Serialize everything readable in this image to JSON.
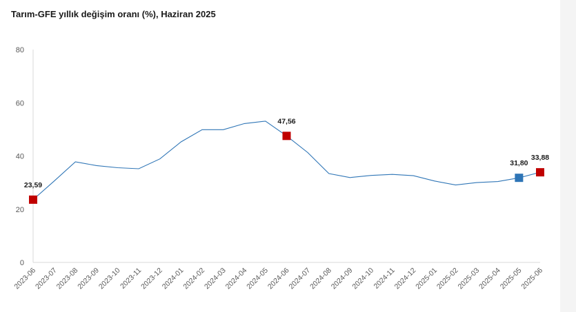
{
  "chart_data": {
    "type": "line",
    "title": "Tarım-GFE yıllık değişim oranı (%), Haziran 2025",
    "xlabel": "",
    "ylabel": "",
    "ylim": [
      0,
      80
    ],
    "yticks": [
      "0",
      "20",
      "40",
      "60",
      "80"
    ],
    "grid": false,
    "x": [
      "2023-06",
      "2023-07",
      "2023-08",
      "2023-09",
      "2023-10",
      "2023-11",
      "2023-12",
      "2024-01",
      "2024-02",
      "2024-03",
      "2024-04",
      "2024-05",
      "2024-06",
      "2024-07",
      "2024-08",
      "2024-09",
      "2024-10",
      "2024-11",
      "2024-12",
      "2025-01",
      "2025-02",
      "2025-03",
      "2025-04",
      "2025-05",
      "2025-06"
    ],
    "series": [
      {
        "values": [
          23.59,
          30.6,
          37.8,
          36.4,
          35.6,
          35.2,
          38.9,
          45.3,
          49.9,
          49.9,
          52.2,
          53.1,
          47.56,
          41.3,
          33.4,
          31.9,
          32.7,
          33.1,
          32.6,
          30.6,
          29.1,
          30.0,
          30.4,
          31.8,
          33.88
        ],
        "color": "#2e75b6"
      }
    ],
    "markers": [
      {
        "index": 0,
        "label": "23,59",
        "color": "#c00000"
      },
      {
        "index": 12,
        "label": "47,56",
        "color": "#c00000"
      },
      {
        "index": 23,
        "label": "31,80",
        "color": "#2e75b6"
      },
      {
        "index": 24,
        "label": "33,88",
        "color": "#c00000"
      }
    ],
    "colors": {
      "line": "#2e75b6",
      "highlight": "#c00000",
      "axis": "#d9d9d9",
      "text": "#595959"
    }
  }
}
